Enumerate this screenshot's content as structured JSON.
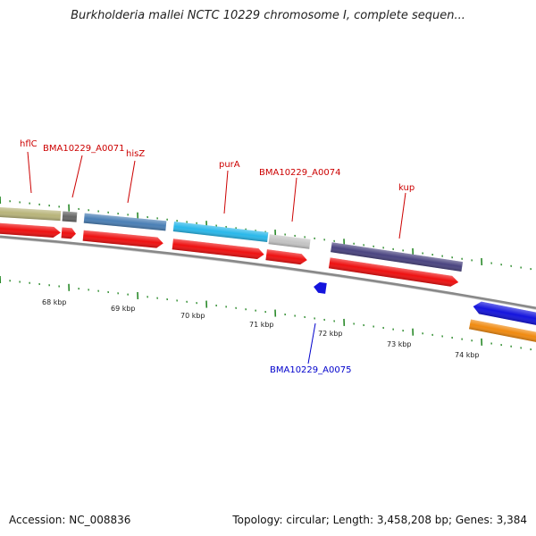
{
  "title": "Burkholderia mallei NCTC 10229 chromosome I, complete sequen...",
  "footer": {
    "accession": "Accession: NC_008836",
    "summary": "Topology: circular; Length: 3,458,208 bp; Genes: 3,384"
  },
  "scale": {
    "ticks": [
      "68 kbp",
      "69 kbp",
      "70 kbp",
      "71 kbp",
      "72 kbp",
      "73 kbp",
      "74 kbp"
    ]
  },
  "genes": [
    {
      "label": "hflC",
      "color": "#cc0000"
    },
    {
      "label": "BMA10229_A0071",
      "color": "#cc0000"
    },
    {
      "label": "hisZ",
      "color": "#cc0000"
    },
    {
      "label": "purA",
      "color": "#cc0000"
    },
    {
      "label": "BMA10229_A0074",
      "color": "#cc0000"
    },
    {
      "label": "kup",
      "color": "#cc0000"
    },
    {
      "label": "BMA10229_A0075",
      "color": "#0000cc"
    }
  ],
  "colors": {
    "cds": "#ee1111",
    "backbone": "#888888",
    "gc_ticks": "#2a8a2a",
    "gene_khaki": "#b8b47a",
    "gene_dark_gray": "#666666",
    "gene_steel_blue": "#4a7fb5",
    "gene_cyan": "#2ab8ea",
    "gene_light_gray": "#c4c4c4",
    "gene_dark_slate": "#4a4480",
    "gene_blue": "#1414dd",
    "gene_orange": "#f08a10"
  }
}
